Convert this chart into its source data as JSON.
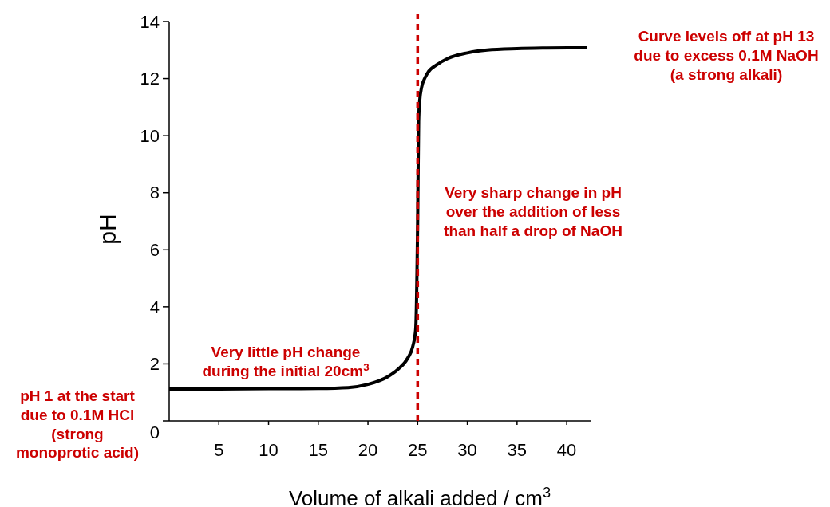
{
  "chart_data": {
    "type": "line",
    "xlabel": "Volume of alkali added / cm$^{3}$",
    "ylabel": "pH",
    "x": [
      0,
      5,
      10,
      15,
      18,
      20,
      22,
      23,
      24,
      24.5,
      24.8,
      25,
      25.1,
      25.2,
      25.4,
      25.7,
      26,
      27,
      28,
      30,
      32,
      35,
      38,
      42
    ],
    "series": [
      {
        "color": "#000000",
        "values": [
          1.12,
          1.12,
          1.13,
          1.14,
          1.17,
          1.28,
          1.55,
          1.8,
          2.2,
          2.6,
          3.2,
          7,
          10.5,
          11.2,
          11.7,
          12.0,
          12.2,
          12.5,
          12.7,
          12.9,
          13.0,
          13.05,
          13.07,
          13.08
        ]
      }
    ],
    "xlim": [
      0,
      42.4
    ],
    "ylim": [
      0,
      14
    ],
    "xticks": [
      5,
      10,
      15,
      20,
      25,
      30,
      35,
      40
    ],
    "yticks": [
      0,
      2,
      4,
      6,
      8,
      10,
      12,
      14
    ],
    "grid": false,
    "marker": "none",
    "line_style": "solid",
    "ref_lines": [
      {
        "axis": "x",
        "value": 25,
        "color": "#cc0000",
        "line_style": "dashed"
      }
    ],
    "annotations": [
      "pH 1 at the start\ndue to 0.1M HCl\n(strong\nmonoprotic acid)",
      "Curve levels off at pH 13\ndue to excess 0.1M NaOH\n(a strong alkali)",
      "Very little pH change\nduring the initial 20cm$^{3}$",
      "Very sharp change in pH\nover the addition of less\nthan half a drop of NaOH"
    ]
  }
}
